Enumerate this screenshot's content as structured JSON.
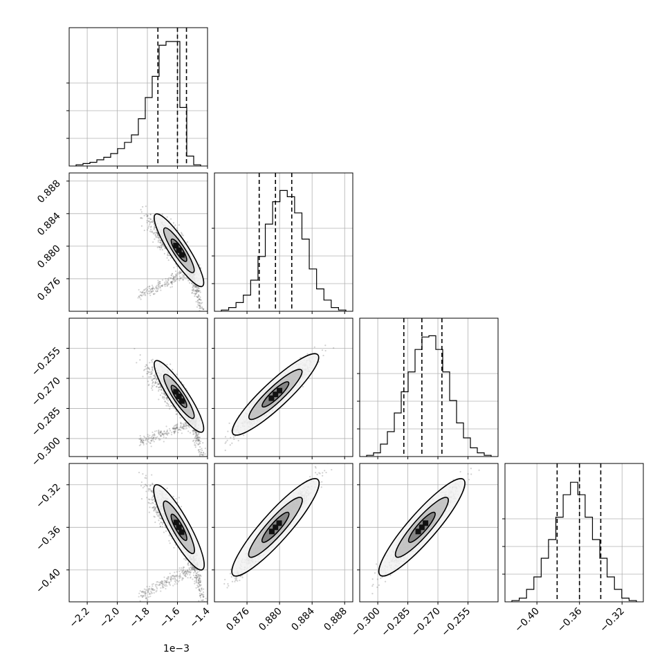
{
  "chart_data": {
    "type": "corner",
    "parameters": [
      {
        "range": [
          -2.32,
          -1.4
        ],
        "ticks": [
          -2.2,
          -2.0,
          -1.8,
          -1.6,
          -1.4
        ],
        "tick_labels": [
          "−2.2",
          "−2.0",
          "−1.8",
          "−1.6",
          "−1.4"
        ],
        "offset_label": "1e−3",
        "quantiles": [
          -1.73,
          -1.6,
          -1.54
        ],
        "peak": -1.58,
        "hist": [
          1,
          2,
          3,
          5,
          7,
          10,
          14,
          19,
          25,
          38,
          55,
          72,
          97,
          100,
          100,
          47,
          8,
          1
        ]
      },
      {
        "range": [
          0.872,
          0.889
        ],
        "ticks": [
          0.876,
          0.88,
          0.884,
          0.888
        ],
        "tick_labels": [
          "0.876",
          "0.880",
          "0.884",
          "0.888"
        ],
        "quantiles": [
          0.8775,
          0.8795,
          0.8815
        ],
        "peak": 0.8795,
        "hist": [
          1,
          3,
          7,
          13,
          25,
          44,
          70,
          88,
          97,
          92,
          79,
          58,
          34,
          18,
          9,
          3,
          1
        ]
      },
      {
        "range": [
          -0.309,
          -0.24
        ],
        "ticks": [
          -0.3,
          -0.285,
          -0.27,
          -0.255
        ],
        "tick_labels": [
          "−0.300",
          "−0.285",
          "−0.270",
          "−0.255"
        ],
        "quantiles": [
          -0.287,
          -0.278,
          -0.268
        ],
        "peak": -0.278,
        "hist": [
          1,
          3,
          10,
          20,
          35,
          52,
          68,
          86,
          96,
          97,
          86,
          68,
          45,
          27,
          15,
          7,
          3,
          1
        ]
      },
      {
        "range": [
          -0.43,
          -0.3
        ],
        "ticks": [
          -0.4,
          -0.36,
          -0.32
        ],
        "tick_labels": [
          "−0.40",
          "−0.36",
          "−0.32"
        ],
        "quantiles": [
          -0.381,
          -0.36,
          -0.34
        ],
        "peak": -0.36,
        "hist": [
          1,
          3,
          10,
          20,
          35,
          50,
          68,
          86,
          96,
          86,
          68,
          50,
          35,
          20,
          10,
          3,
          1
        ]
      }
    ],
    "pairs": [
      {
        "x": 0,
        "y": 1,
        "center": [
          -1.59,
          0.8795
        ],
        "rho": -0.85,
        "sx": 0.06,
        "sy": 0.002,
        "curved": true,
        "tail": {
          "x": [
            -1.45,
            -1.85
          ],
          "y": [
            0.8775,
            0.874
          ]
        }
      },
      {
        "x": 0,
        "y": 2,
        "center": [
          -1.59,
          -0.279
        ],
        "rho": -0.85,
        "sx": 0.06,
        "sy": 0.008,
        "curved": true,
        "tail": {
          "x": [
            -1.45,
            -1.85
          ],
          "y": [
            -0.29,
            -0.302
          ]
        }
      },
      {
        "x": 1,
        "y": 2,
        "center": [
          0.8795,
          -0.278
        ],
        "rho": 0.95,
        "sx": 0.002,
        "sy": 0.008,
        "curved": false
      },
      {
        "x": 0,
        "y": 3,
        "center": [
          -1.59,
          -0.36
        ],
        "rho": -0.85,
        "sx": 0.06,
        "sy": 0.018,
        "curved": true,
        "tail": {
          "x": [
            -1.45,
            -1.85
          ],
          "y": [
            -0.395,
            -0.425
          ]
        }
      },
      {
        "x": 1,
        "y": 3,
        "center": [
          0.8795,
          -0.36
        ],
        "rho": 0.96,
        "sx": 0.002,
        "sy": 0.018,
        "curved": false
      },
      {
        "x": 2,
        "y": 3,
        "center": [
          -0.278,
          -0.36
        ],
        "rho": 0.96,
        "sx": 0.008,
        "sy": 0.018,
        "curved": false
      }
    ]
  }
}
